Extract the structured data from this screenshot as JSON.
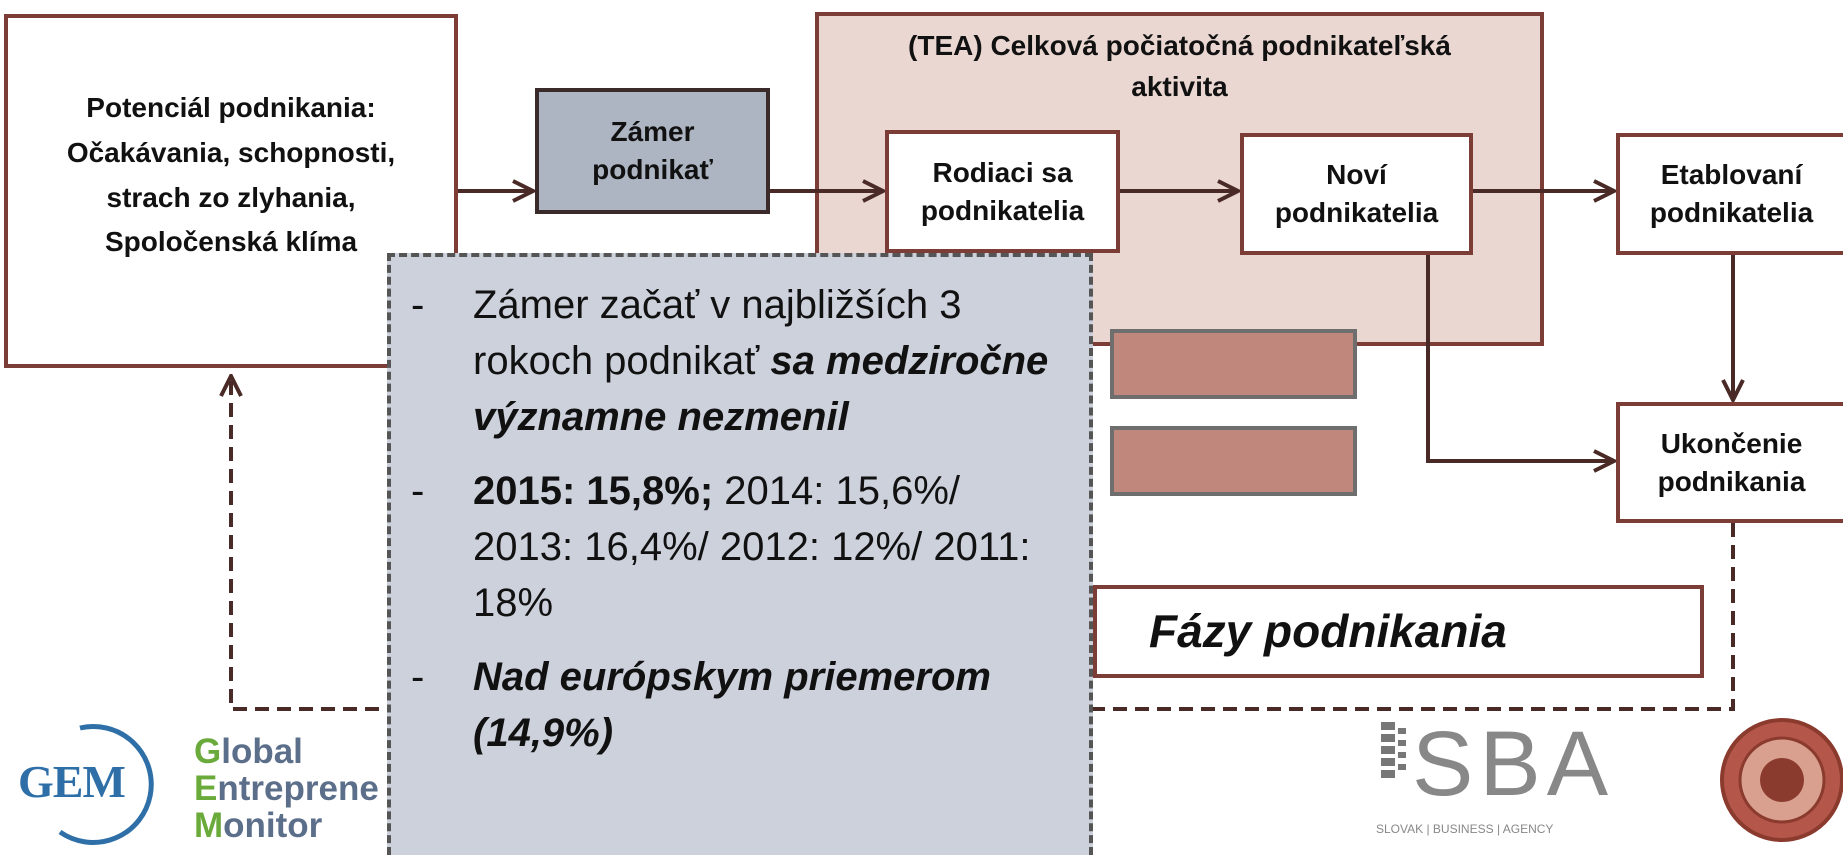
{
  "nodes": {
    "potential": {
      "lines": [
        "Potenciál podnikania:",
        "Očakávania, schopnosti,",
        "strach zo zlyhania,",
        "Spoločenská klíma"
      ]
    },
    "intent": {
      "lines": [
        "Zámer",
        "podnikať"
      ]
    },
    "tea": {
      "lines": [
        "(TEA) Celková počiatočná podnikateľská",
        "aktivita"
      ]
    },
    "nascent": {
      "lines": [
        "Rodiaci sa",
        "podnikatelia"
      ]
    },
    "new": {
      "lines": [
        "Noví",
        "podnikatelia"
      ]
    },
    "established": {
      "lines": [
        "Etablovaní",
        "podnikatelia"
      ]
    },
    "discontinued": {
      "lines": [
        "Ukončenie",
        "podnikania"
      ]
    },
    "phases": {
      "label": "Fázy podnikania"
    }
  },
  "callout": {
    "bullet_marker": "-",
    "items": [
      [
        {
          "text": "Zámer začať v najbližších 3 rokoch podnikať ",
          "style": ""
        },
        {
          "text": "sa medziročne významne nezmenil",
          "style": "b i"
        }
      ],
      [
        {
          "text": "2015: 15,8%;",
          "style": "b"
        },
        {
          "text": " 2014: 15,6%/ 2013: 16,4%/ 2012: 12%/ 2011: 18%",
          "style": ""
        }
      ],
      [
        {
          "text": "Nad európskym priemerom (14,9%)",
          "style": "b i"
        }
      ]
    ]
  },
  "logos": {
    "gem": {
      "mark": "GEM",
      "lines": [
        "Global",
        "Entreprene",
        "Monitor"
      ]
    },
    "sba": {
      "mark": "SBA",
      "tagline": "SLOVAK | BUSINESS | AGENCY"
    }
  }
}
